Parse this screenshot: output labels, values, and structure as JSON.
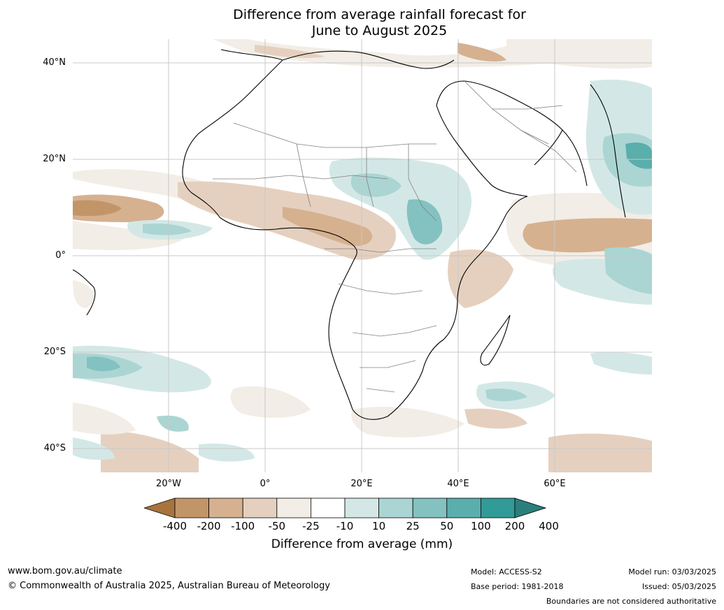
{
  "title": {
    "line1": "Difference from average rainfall forecast for",
    "line2": "June to August 2025"
  },
  "map": {
    "latitude_labels": [
      "40°N",
      "20°N",
      "0°",
      "20°S",
      "40°S"
    ],
    "longitude_labels": [
      "20°W",
      "0°",
      "20°E",
      "40°E",
      "60°E"
    ],
    "region": "Africa"
  },
  "colorbar": {
    "ticks": [
      "-400",
      "-200",
      "-100",
      "-50",
      "-25",
      "-10",
      "10",
      "25",
      "50",
      "100",
      "200",
      "400"
    ],
    "colors": [
      "#a9733d",
      "#c29569",
      "#d5b190",
      "#e5d0bf",
      "#f2ede6",
      "#ffffff",
      "#d3e8e6",
      "#abd5d3",
      "#83c2c0",
      "#5aaeac",
      "#319b98",
      "#2a7f7c"
    ],
    "label": "Difference from average (mm)"
  },
  "footer": {
    "website": "www.bom.gov.au/climate",
    "copyright": "© Commonwealth of Australia 2025, Australian Bureau of Meteorology",
    "model": "Model: ACCESS-S2",
    "base_period": "Base period: 1981-2018",
    "model_run": "Model run: 03/03/2025",
    "issued": "Issued: 05/03/2025",
    "disclaimer": "Boundaries are not considered authoritative"
  }
}
